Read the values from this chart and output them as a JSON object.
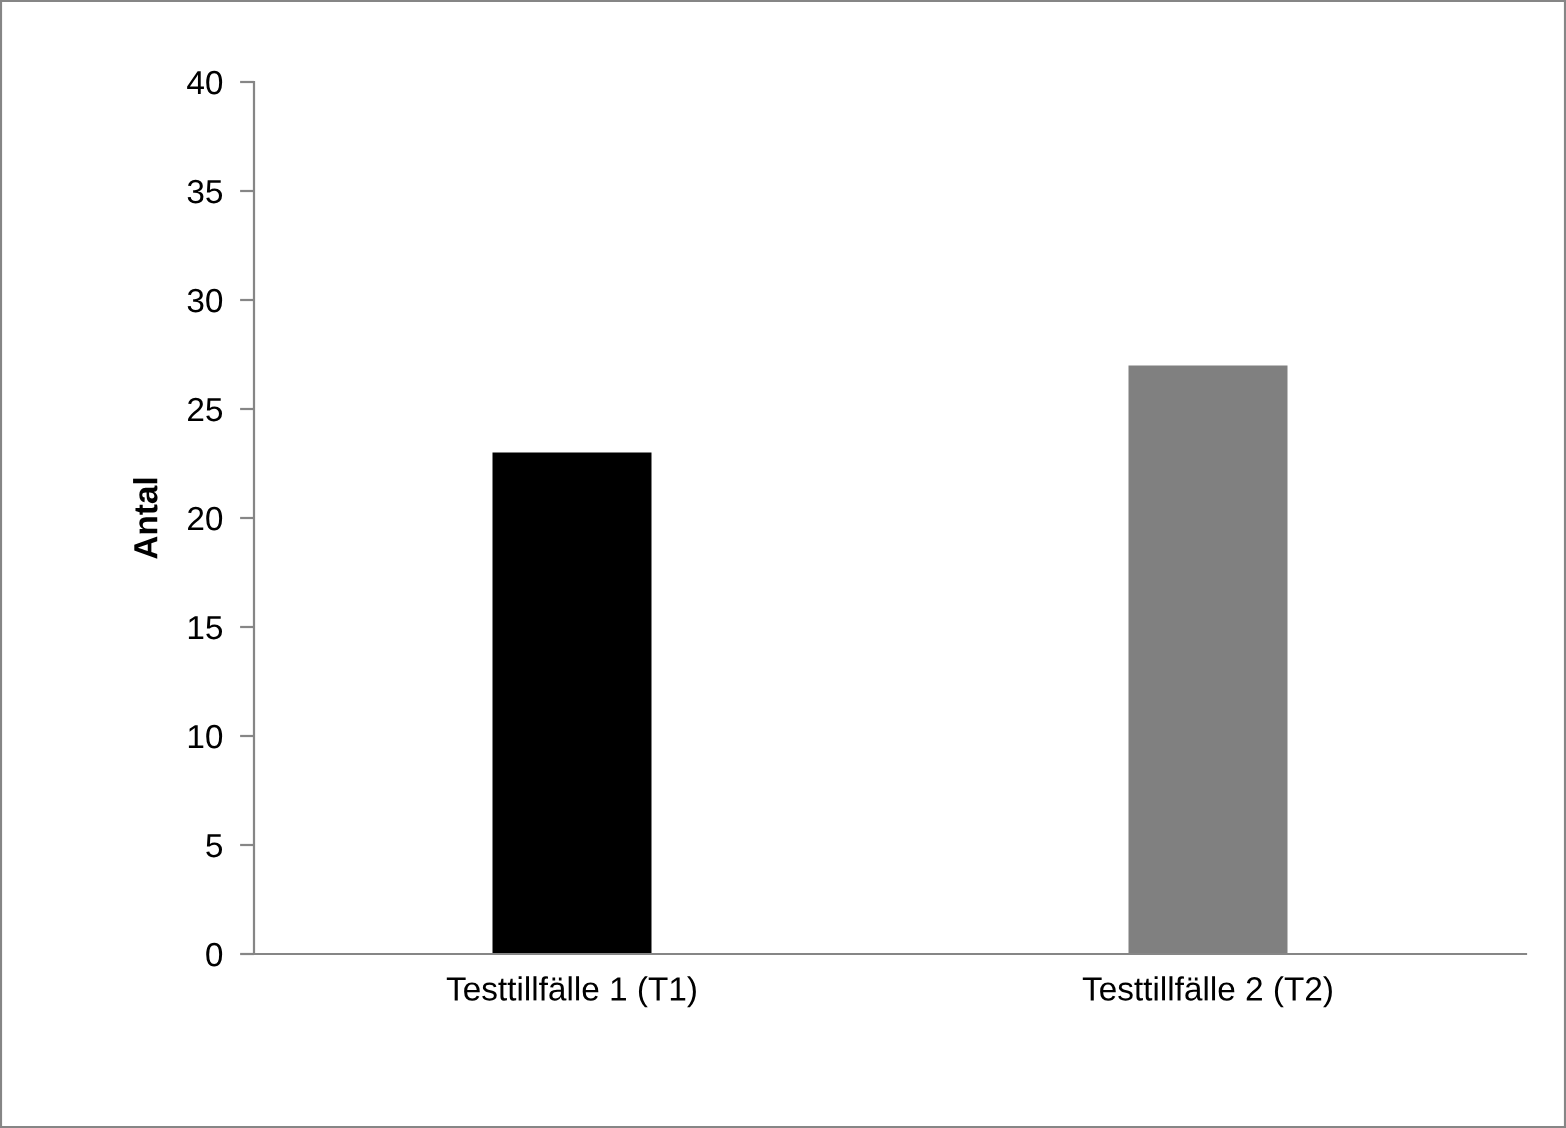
{
  "chart_data": {
    "type": "bar",
    "ylabel": "Antal",
    "categories": [
      "Testtillfälle 1 (T1)",
      "Testtillfälle 2 (T2)"
    ],
    "values": [
      23,
      27
    ],
    "colors": [
      "#000000",
      "#808080"
    ],
    "ylim": [
      0,
      40
    ],
    "yticks": [
      0,
      5,
      10,
      15,
      20,
      25,
      30,
      35,
      40
    ],
    "grid": false,
    "legend": false
  }
}
